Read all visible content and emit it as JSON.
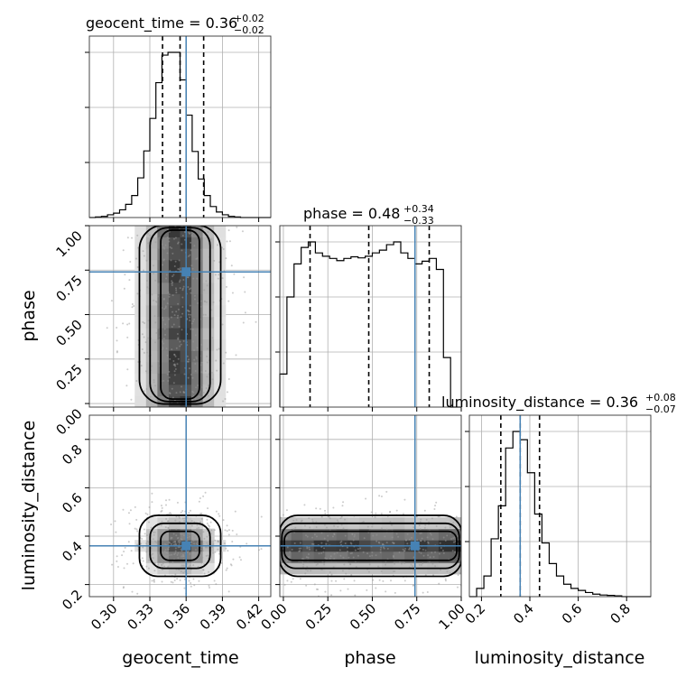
{
  "chart_data": {
    "type": "corner",
    "parameters": [
      "geocent_time",
      "phase",
      "luminosity_distance"
    ],
    "grid": true,
    "truth_color": "#4682b4",
    "truths": {
      "geocent_time": 0.36,
      "phase": 0.74,
      "luminosity_distance": 0.36
    },
    "titles": [
      {
        "param": "geocent_time",
        "text": "geocent_time = 0.36",
        "sup": "+0.02",
        "sub": "−0.02"
      },
      {
        "param": "phase",
        "text": "phase = 0.48",
        "sup": "+0.34",
        "sub": "−0.33"
      },
      {
        "param": "luminosity_distance",
        "text": "luminosity_distance = 0.36",
        "sup": "+0.08",
        "sub": "−0.07"
      }
    ],
    "axes": {
      "geocent_time": {
        "label": "geocent_time",
        "lim": [
          0.28,
          0.43
        ],
        "ticks": [
          0.3,
          0.33,
          0.36,
          0.39,
          0.42
        ],
        "ticklabels": [
          "0.30",
          "0.33",
          "0.36",
          "0.39",
          "0.42"
        ]
      },
      "phase": {
        "label": "phase",
        "lim": [
          -0.02,
          1.0
        ],
        "ticks": [
          0.0,
          0.25,
          0.5,
          0.75,
          1.0
        ],
        "ticklabels": [
          "0.00",
          "0.25",
          "0.50",
          "0.75",
          "1.00"
        ]
      },
      "luminosity_distance": {
        "label": "luminosity_distance",
        "lim": [
          0.15,
          0.9
        ],
        "ticks": [
          0.2,
          0.4,
          0.6,
          0.8
        ],
        "ticklabels": [
          "0.2",
          "0.4",
          "0.6",
          "0.8"
        ]
      }
    },
    "marginals": {
      "geocent_time": {
        "quantiles": [
          0.3405,
          0.355,
          0.3745
        ],
        "edges": [
          0.28,
          0.285,
          0.29,
          0.295,
          0.3,
          0.305,
          0.31,
          0.315,
          0.32,
          0.325,
          0.33,
          0.335,
          0.34,
          0.345,
          0.35,
          0.355,
          0.36,
          0.365,
          0.37,
          0.375,
          0.38,
          0.385,
          0.39,
          0.395,
          0.4,
          0.405,
          0.41,
          0.415,
          0.42,
          0.425,
          0.43
        ],
        "counts": [
          0,
          1,
          2,
          5,
          8,
          14,
          24,
          40,
          72,
          121,
          180,
          245,
          295,
          300,
          300,
          250,
          186,
          120,
          70,
          40,
          20,
          10,
          5,
          2,
          1,
          0,
          0,
          0,
          0,
          0
        ]
      },
      "phase": {
        "quantiles": [
          0.15,
          0.48,
          0.82
        ],
        "edges": [
          -0.02,
          0.02,
          0.06,
          0.1,
          0.14,
          0.18,
          0.22,
          0.26,
          0.3,
          0.34,
          0.38,
          0.42,
          0.46,
          0.5,
          0.54,
          0.58,
          0.62,
          0.66,
          0.7,
          0.74,
          0.78,
          0.82,
          0.86,
          0.9,
          0.94,
          0.98,
          1.02
        ],
        "counts": [
          0.6,
          2.0,
          2.6,
          2.9,
          3.0,
          2.8,
          2.74,
          2.7,
          2.66,
          2.7,
          2.73,
          2.71,
          2.74,
          2.8,
          2.85,
          2.95,
          3.0,
          2.8,
          2.7,
          2.6,
          2.65,
          2.7,
          2.5,
          0.9,
          0,
          0
        ]
      },
      "luminosity_distance": {
        "quantiles": [
          0.28,
          0.36,
          0.44
        ],
        "edges": [
          0.15,
          0.18,
          0.21,
          0.24,
          0.27,
          0.3,
          0.33,
          0.36,
          0.39,
          0.42,
          0.45,
          0.48,
          0.51,
          0.54,
          0.57,
          0.6,
          0.63,
          0.66,
          0.69,
          0.72,
          0.75,
          0.78,
          0.81,
          0.84,
          0.87,
          0.9
        ],
        "counts": [
          0,
          2,
          5,
          14,
          22,
          36,
          40,
          38,
          30,
          20,
          13,
          8,
          5,
          3,
          2,
          1.5,
          1,
          0.6,
          0.4,
          0.3,
          0.2,
          0,
          0,
          0,
          0
        ]
      }
    },
    "joint": [
      {
        "x": "geocent_time",
        "y": "phase",
        "xcenter": 0.355,
        "xsd": 0.016,
        "ycenter": 0.5,
        "yrange": [
          0.0,
          1.0
        ]
      },
      {
        "x": "geocent_time",
        "y": "luminosity_distance",
        "xcenter": 0.355,
        "xsd": 0.016,
        "ycenter": 0.36,
        "ysd": 0.06
      },
      {
        "x": "phase",
        "y": "luminosity_distance",
        "xrange": [
          -0.02,
          1.0
        ],
        "ycenter": 0.36,
        "ysd": 0.06
      }
    ]
  }
}
